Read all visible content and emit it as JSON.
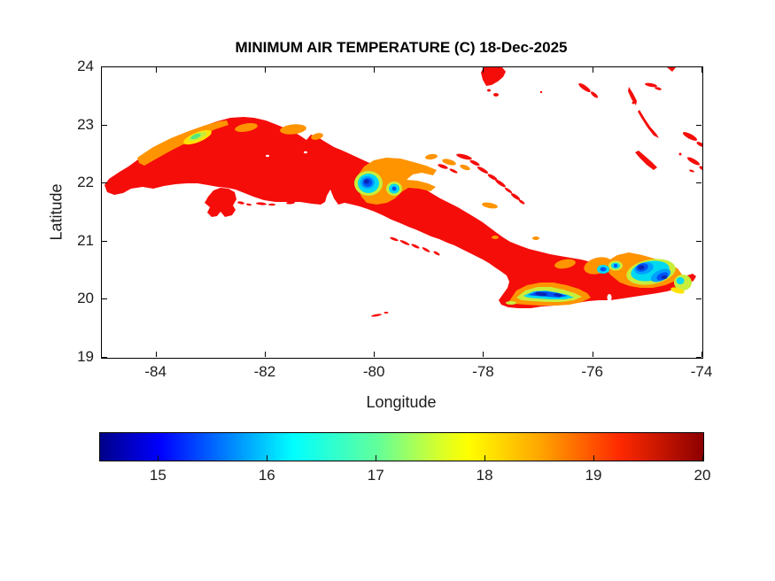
{
  "figure": {
    "title": "MINIMUM AIR TEMPERATURE (C) 18-Dec-2025"
  },
  "axes": {
    "xlabel": "Longitude",
    "ylabel": "Latitude",
    "x_tick_labels": [
      "-84",
      "-82",
      "-80",
      "-78",
      "-76",
      "-74"
    ],
    "y_tick_labels": [
      "24",
      "23",
      "22",
      "21",
      "20",
      "19"
    ]
  },
  "colorbar": {
    "tick_labels": [
      "15",
      "16",
      "17",
      "18",
      "19",
      "20"
    ]
  },
  "chart_data": {
    "type": "heatmap",
    "title": "MINIMUM AIR TEMPERATURE (C) 18-Dec-2025",
    "variable": "minimum air temperature",
    "units": "C",
    "date": "18-Dec-2025",
    "region": "Cuba, Isla de la Juventud and nearby Bahamas cays",
    "xlabel": "Longitude",
    "ylabel": "Latitude",
    "xlim": [
      -85,
      -74
    ],
    "ylim": [
      19,
      24
    ],
    "x_ticks": [
      -84,
      -82,
      -80,
      -78,
      -76,
      -74
    ],
    "y_ticks": [
      24,
      23,
      22,
      21,
      20,
      19
    ],
    "grid": false,
    "colorbar": {
      "orientation": "horizontal",
      "position": "south",
      "colormap": "jet",
      "min": 14.46,
      "max": 20,
      "ticks": [
        15,
        16,
        17,
        18,
        19,
        20
      ]
    },
    "features": [
      {
        "area": "Cuban lowlands (most of island)",
        "approx_value_C": 19.5,
        "rendered_color": "red"
      },
      {
        "area": "Guaniguanico range, western Cuba (~-83.5,22.5)",
        "approx_value_C": 17,
        "rendered_color": "orange band with yellow-green core"
      },
      {
        "area": "Escambray mountains, central Cuba (~-80.1,22.0)",
        "approx_value_C": 14.7,
        "rendered_color": "dark blue core, cyan ring, orange halo"
      },
      {
        "area": "Sierra Maestra ridge, southeast coast (~-76.8,20.0)",
        "approx_value_C": 14.6,
        "rendered_color": "dark blue ridge with cyan/green/orange fringe"
      },
      {
        "area": "Nipe-Sagua-Baracoa massif, eastern tip (~-75.0,20.4)",
        "approx_value_C": 15.2,
        "rendered_color": "blue patches with cyan/green ring and orange halo"
      },
      {
        "area": "Isla de la Juventud, Bahamas islands, offshore cays",
        "approx_value_C": 19.5,
        "rendered_color": "red"
      }
    ]
  }
}
